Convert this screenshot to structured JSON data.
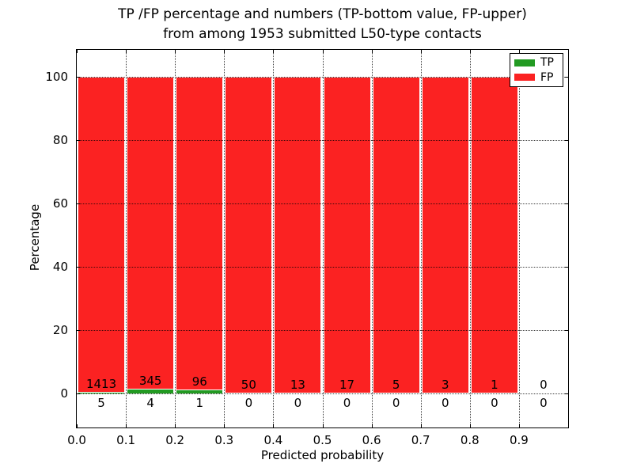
{
  "chart_data": {
    "type": "bar",
    "subtype": "stacked-percentage-histogram",
    "title_line1": "TP /FP percentage and numbers (TP-bottom value, FP-upper)",
    "title_line2": "from among 1953 submitted L50-type contacts",
    "xlabel": "Predicted probability",
    "ylabel": "Percentage",
    "x_tick_labels": [
      "0.0",
      "0.1",
      "0.2",
      "0.3",
      "0.4",
      "0.5",
      "0.6",
      "0.7",
      "0.8",
      "0.9"
    ],
    "y_ticks": [
      0,
      20,
      40,
      60,
      80,
      100
    ],
    "xlim": [
      0.0,
      1.0
    ],
    "ylim": [
      -11,
      108.75
    ],
    "bin_width": 0.1,
    "bin_starts": [
      0.0,
      0.1,
      0.2,
      0.3,
      0.4,
      0.5,
      0.6,
      0.7,
      0.8,
      0.9
    ],
    "grid": true,
    "series": [
      {
        "name": "TP",
        "color": "#229a22",
        "counts": [
          5,
          4,
          1,
          0,
          0,
          0,
          0,
          0,
          0,
          0
        ]
      },
      {
        "name": "FP",
        "color": "#fb2222",
        "counts": [
          1413,
          345,
          96,
          50,
          13,
          17,
          5,
          3,
          1,
          0
        ]
      }
    ],
    "legend": {
      "position": "upper right",
      "entries": [
        {
          "label": "TP",
          "color": "#229a22"
        },
        {
          "label": "FP",
          "color": "#fb2222"
        }
      ]
    },
    "colors": {
      "background": "#ffffff",
      "text": "#000000",
      "axes": "#000000"
    }
  }
}
